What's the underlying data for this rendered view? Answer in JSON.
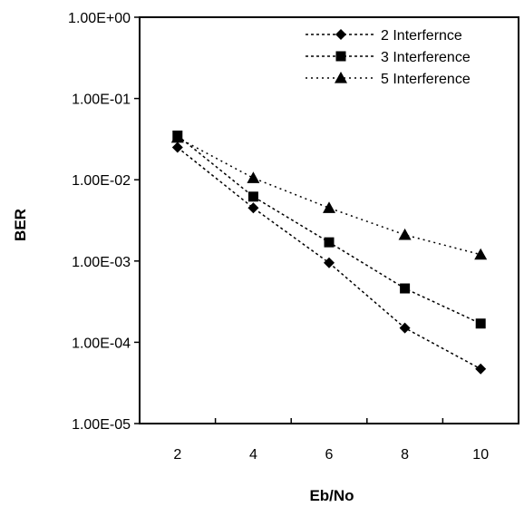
{
  "chart_data": {
    "type": "line",
    "title": "",
    "xlabel": "Eb/No",
    "ylabel": "BER",
    "x_ticks": [
      "2",
      "4",
      "6",
      "8",
      "10"
    ],
    "y_ticks": [
      "1.00E+00",
      "1.00E-01",
      "1.00E-02",
      "1.00E-03",
      "1.00E-04",
      "1.00E-05"
    ],
    "xlim": [
      1,
      11
    ],
    "ylim": [
      1e-05,
      1
    ],
    "y_scale": "log",
    "grid": false,
    "legend_position": "top-right",
    "x": [
      2,
      4,
      6,
      8,
      10
    ],
    "series": [
      {
        "name": "2 Interfernce",
        "marker": "diamond",
        "values": [
          0.025,
          0.0045,
          0.00095,
          0.00015,
          4.7e-05
        ]
      },
      {
        "name": "3 Interference",
        "marker": "square",
        "values": [
          0.035,
          0.0062,
          0.0017,
          0.00046,
          0.00017
        ]
      },
      {
        "name": "5 Interference",
        "marker": "triangle",
        "values": [
          0.033,
          0.0105,
          0.0045,
          0.0021,
          0.0012
        ]
      }
    ],
    "line_color": "#000000"
  }
}
